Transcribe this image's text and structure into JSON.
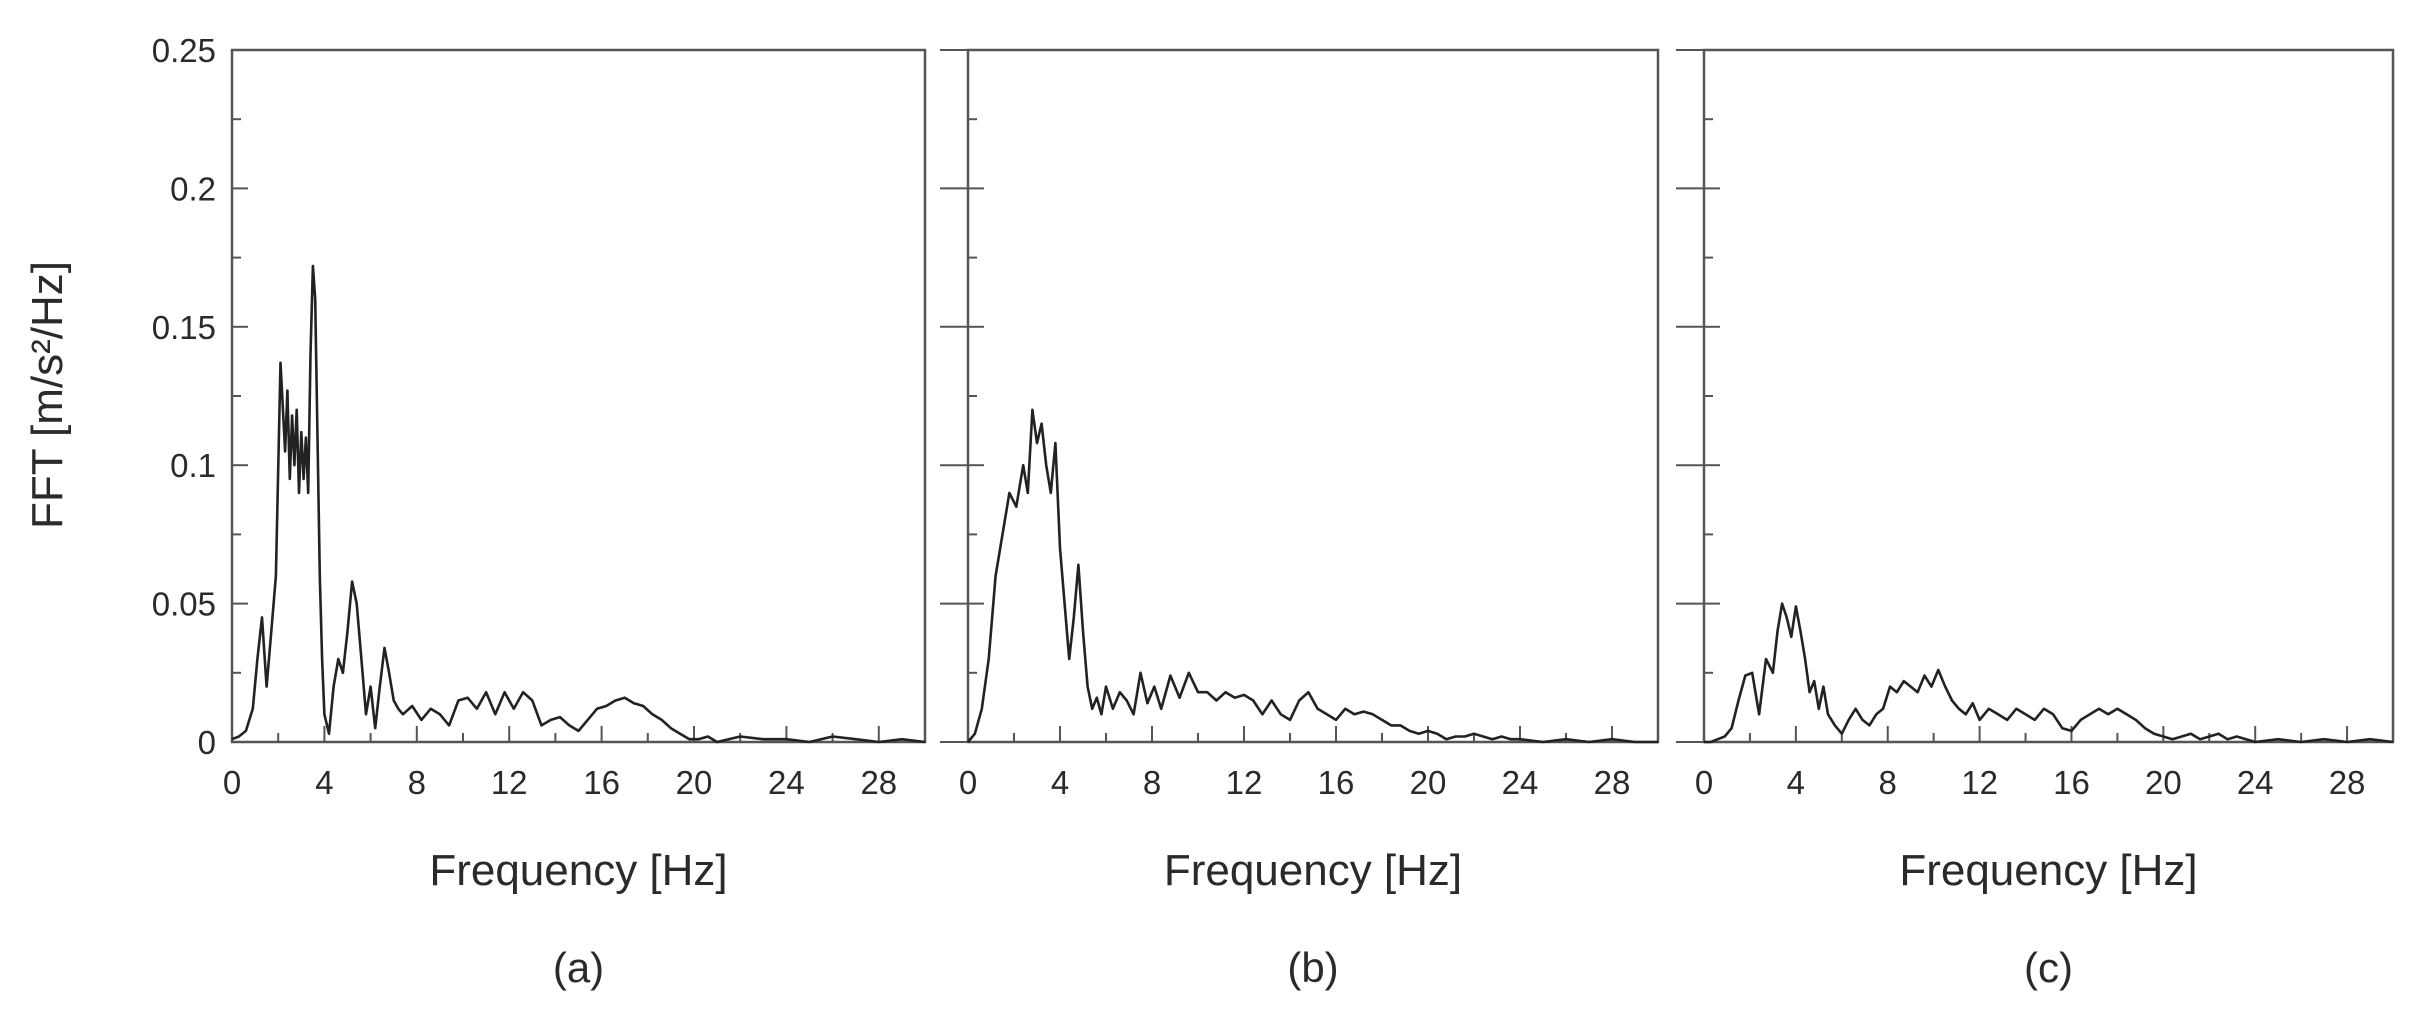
{
  "figure": {
    "ylabel": "FFT [m/s²/Hz]",
    "panels_order": [
      "a",
      "b",
      "c"
    ]
  },
  "chart_data": [
    {
      "type": "line",
      "panel": "a",
      "caption": "(a)",
      "xlabel": "Frequency [Hz]",
      "ylabel": "FFT [m/s²/Hz]",
      "xlim": [
        0,
        30
      ],
      "ylim": [
        0,
        0.25
      ],
      "x_ticks": [
        "0",
        "4",
        "8",
        "12",
        "16",
        "20",
        "24",
        "28"
      ],
      "y_ticks": [
        "0",
        "0.05",
        "0.1",
        "0.15",
        "0.2",
        "0.25"
      ],
      "grid": false,
      "line_color": "#222222",
      "series": [
        {
          "x": [
            0,
            0.3,
            0.6,
            0.9,
            1.1,
            1.3,
            1.5,
            1.7,
            1.9,
            2.1,
            2.3,
            2.4,
            2.5,
            2.6,
            2.7,
            2.8,
            2.9,
            3.0,
            3.1,
            3.2,
            3.3,
            3.4,
            3.5,
            3.6,
            3.7,
            3.8,
            3.9,
            4.0,
            4.2,
            4.4,
            4.6,
            4.8,
            5.0,
            5.2,
            5.4,
            5.6,
            5.8,
            6.0,
            6.2,
            6.4,
            6.6,
            6.8,
            7.0,
            7.2,
            7.4,
            7.8,
            8.2,
            8.6,
            9.0,
            9.4,
            9.8,
            10.2,
            10.6,
            11.0,
            11.4,
            11.8,
            12.2,
            12.6,
            13.0,
            13.4,
            13.8,
            14.2,
            14.6,
            15.0,
            15.4,
            15.8,
            16.2,
            16.6,
            17.0,
            17.4,
            17.8,
            18.2,
            18.6,
            19.0,
            19.4,
            19.8,
            20.2,
            20.6,
            21.0,
            22.0,
            23.0,
            24.0,
            25.0,
            26.0,
            27.0,
            28.0,
            29.0,
            30.0
          ],
          "y": [
            0.001,
            0.002,
            0.004,
            0.012,
            0.03,
            0.045,
            0.02,
            0.04,
            0.06,
            0.137,
            0.105,
            0.127,
            0.095,
            0.118,
            0.1,
            0.12,
            0.09,
            0.112,
            0.095,
            0.11,
            0.09,
            0.14,
            0.172,
            0.16,
            0.11,
            0.06,
            0.03,
            0.01,
            0.003,
            0.02,
            0.03,
            0.025,
            0.04,
            0.058,
            0.05,
            0.03,
            0.01,
            0.02,
            0.005,
            0.02,
            0.034,
            0.025,
            0.015,
            0.012,
            0.01,
            0.013,
            0.008,
            0.012,
            0.01,
            0.006,
            0.015,
            0.016,
            0.012,
            0.018,
            0.01,
            0.018,
            0.012,
            0.018,
            0.015,
            0.006,
            0.008,
            0.009,
            0.006,
            0.004,
            0.008,
            0.012,
            0.013,
            0.015,
            0.016,
            0.014,
            0.013,
            0.01,
            0.008,
            0.005,
            0.003,
            0.001,
            0.001,
            0.002,
            0.0,
            0.002,
            0.001,
            0.001,
            0.0,
            0.002,
            0.001,
            0.0,
            0.001,
            0.0
          ]
        }
      ]
    },
    {
      "type": "line",
      "panel": "b",
      "caption": "(b)",
      "xlabel": "Frequency [Hz]",
      "ylabel": "",
      "xlim": [
        0,
        30
      ],
      "ylim": [
        0,
        0.25
      ],
      "x_ticks": [
        "0",
        "4",
        "8",
        "12",
        "16",
        "20",
        "24",
        "28"
      ],
      "y_ticks": [],
      "grid": false,
      "line_color": "#222222",
      "series": [
        {
          "x": [
            0,
            0.3,
            0.6,
            0.9,
            1.2,
            1.5,
            1.8,
            2.1,
            2.4,
            2.6,
            2.8,
            3.0,
            3.2,
            3.4,
            3.6,
            3.8,
            4.0,
            4.2,
            4.4,
            4.6,
            4.8,
            5.0,
            5.2,
            5.4,
            5.6,
            5.8,
            6.0,
            6.3,
            6.6,
            6.9,
            7.2,
            7.5,
            7.8,
            8.1,
            8.4,
            8.8,
            9.2,
            9.6,
            10.0,
            10.4,
            10.8,
            11.2,
            11.6,
            12.0,
            12.4,
            12.8,
            13.2,
            13.6,
            14.0,
            14.4,
            14.8,
            15.2,
            15.6,
            16.0,
            16.4,
            16.8,
            17.2,
            17.6,
            18.0,
            18.4,
            18.8,
            19.2,
            19.6,
            20.0,
            20.4,
            20.8,
            21.2,
            21.6,
            22.0,
            22.4,
            22.8,
            23.2,
            23.6,
            24.0,
            25.0,
            26.0,
            27.0,
            28.0,
            29.0,
            30.0
          ],
          "y": [
            0.0,
            0.003,
            0.012,
            0.03,
            0.06,
            0.075,
            0.09,
            0.085,
            0.1,
            0.09,
            0.12,
            0.108,
            0.115,
            0.1,
            0.09,
            0.108,
            0.07,
            0.05,
            0.03,
            0.045,
            0.064,
            0.04,
            0.02,
            0.012,
            0.016,
            0.01,
            0.02,
            0.012,
            0.018,
            0.015,
            0.01,
            0.025,
            0.014,
            0.02,
            0.012,
            0.024,
            0.016,
            0.025,
            0.018,
            0.018,
            0.015,
            0.018,
            0.016,
            0.017,
            0.015,
            0.01,
            0.015,
            0.01,
            0.008,
            0.015,
            0.018,
            0.012,
            0.01,
            0.008,
            0.012,
            0.01,
            0.011,
            0.01,
            0.008,
            0.006,
            0.006,
            0.004,
            0.003,
            0.004,
            0.003,
            0.001,
            0.002,
            0.002,
            0.003,
            0.002,
            0.001,
            0.002,
            0.001,
            0.001,
            0.0,
            0.001,
            0.0,
            0.001,
            0.0,
            0.0
          ]
        }
      ]
    },
    {
      "type": "line",
      "panel": "c",
      "caption": "(c)",
      "xlabel": "Frequency [Hz]",
      "ylabel": "",
      "xlim": [
        0,
        30
      ],
      "ylim": [
        0,
        0.25
      ],
      "x_ticks": [
        "0",
        "4",
        "8",
        "12",
        "16",
        "20",
        "24",
        "28"
      ],
      "y_ticks": [],
      "grid": false,
      "line_color": "#222222",
      "series": [
        {
          "x": [
            0,
            0.3,
            0.6,
            0.9,
            1.2,
            1.5,
            1.8,
            2.1,
            2.4,
            2.7,
            3.0,
            3.2,
            3.4,
            3.6,
            3.8,
            4.0,
            4.2,
            4.4,
            4.6,
            4.8,
            5.0,
            5.2,
            5.4,
            5.7,
            6.0,
            6.3,
            6.6,
            6.9,
            7.2,
            7.5,
            7.8,
            8.1,
            8.4,
            8.7,
            9.0,
            9.3,
            9.6,
            9.9,
            10.2,
            10.5,
            10.8,
            11.1,
            11.4,
            11.7,
            12.0,
            12.4,
            12.8,
            13.2,
            13.6,
            14.0,
            14.4,
            14.8,
            15.2,
            15.6,
            16.0,
            16.4,
            16.8,
            17.2,
            17.6,
            18.0,
            18.4,
            18.8,
            19.2,
            19.6,
            20.0,
            20.4,
            20.8,
            21.2,
            21.6,
            22.0,
            22.4,
            22.8,
            23.2,
            23.6,
            24.0,
            25.0,
            26.0,
            27.0,
            28.0,
            29.0,
            30.0
          ],
          "y": [
            0.0,
            0.0,
            0.001,
            0.002,
            0.005,
            0.015,
            0.024,
            0.025,
            0.01,
            0.03,
            0.025,
            0.04,
            0.05,
            0.045,
            0.038,
            0.049,
            0.04,
            0.03,
            0.018,
            0.022,
            0.012,
            0.02,
            0.01,
            0.006,
            0.003,
            0.008,
            0.012,
            0.008,
            0.006,
            0.01,
            0.012,
            0.02,
            0.018,
            0.022,
            0.02,
            0.018,
            0.024,
            0.02,
            0.026,
            0.02,
            0.015,
            0.012,
            0.01,
            0.014,
            0.008,
            0.012,
            0.01,
            0.008,
            0.012,
            0.01,
            0.008,
            0.012,
            0.01,
            0.005,
            0.004,
            0.008,
            0.01,
            0.012,
            0.01,
            0.012,
            0.01,
            0.008,
            0.005,
            0.003,
            0.002,
            0.001,
            0.002,
            0.003,
            0.001,
            0.002,
            0.003,
            0.001,
            0.002,
            0.001,
            0.0,
            0.001,
            0.0,
            0.001,
            0.0,
            0.001,
            0.0
          ]
        }
      ]
    }
  ]
}
